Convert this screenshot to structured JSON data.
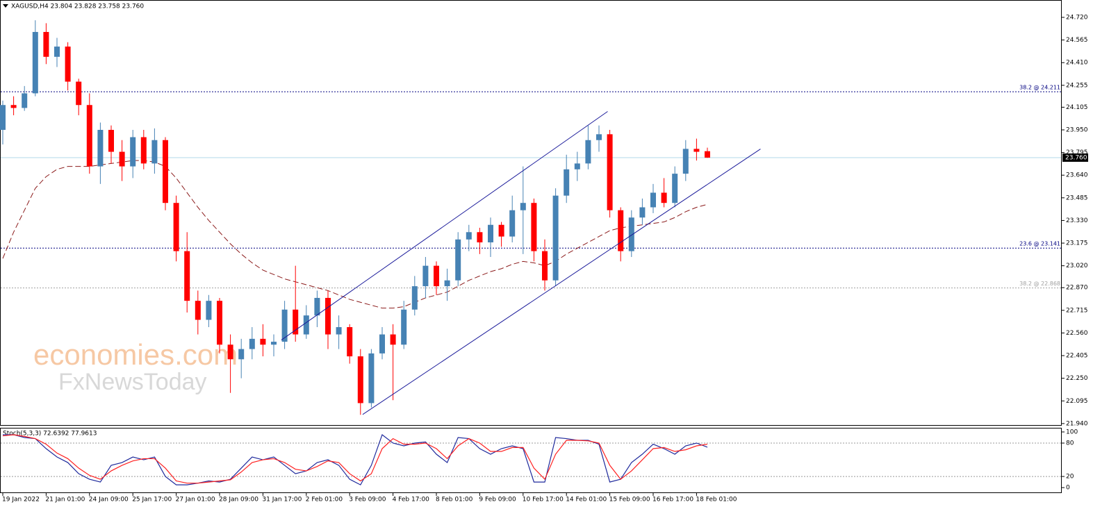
{
  "chart_data": [
    {
      "type": "candlestick",
      "title": "XAGUSD,H4  23.804 23.828 23.758 23.760",
      "bull_color": "#4682b4",
      "bear_color": "#ff0000",
      "ohlc": [
        [
          23.95,
          24.15,
          23.85,
          24.12
        ],
        [
          24.12,
          24.18,
          24.05,
          24.1
        ],
        [
          24.1,
          24.25,
          24.08,
          24.2
        ],
        [
          24.2,
          24.7,
          24.18,
          24.62
        ],
        [
          24.62,
          24.68,
          24.4,
          24.45
        ],
        [
          24.45,
          24.58,
          24.38,
          24.52
        ],
        [
          24.52,
          24.55,
          24.22,
          24.28
        ],
        [
          24.28,
          24.3,
          24.05,
          24.12
        ],
        [
          24.12,
          24.2,
          23.65,
          23.7
        ],
        [
          23.7,
          24.0,
          23.58,
          23.95
        ],
        [
          23.95,
          23.98,
          23.72,
          23.8
        ],
        [
          23.8,
          23.88,
          23.6,
          23.7
        ],
        [
          23.7,
          23.95,
          23.62,
          23.9
        ],
        [
          23.9,
          23.95,
          23.68,
          23.72
        ],
        [
          23.72,
          23.96,
          23.65,
          23.88
        ],
        [
          23.88,
          23.9,
          23.4,
          23.45
        ],
        [
          23.45,
          23.5,
          23.05,
          23.12
        ],
        [
          23.12,
          23.25,
          22.7,
          22.78
        ],
        [
          22.78,
          22.85,
          22.55,
          22.65
        ],
        [
          22.65,
          22.82,
          22.6,
          22.78
        ],
        [
          22.78,
          22.8,
          22.42,
          22.48
        ],
        [
          22.48,
          22.55,
          22.15,
          22.38
        ],
        [
          22.38,
          22.52,
          22.25,
          22.45
        ],
        [
          22.45,
          22.6,
          22.38,
          22.52
        ],
        [
          22.52,
          22.62,
          22.4,
          22.48
        ],
        [
          22.48,
          22.55,
          22.4,
          22.5
        ],
        [
          22.5,
          22.78,
          22.45,
          22.72
        ],
        [
          22.72,
          23.02,
          22.5,
          22.55
        ],
        [
          22.55,
          22.75,
          22.52,
          22.68
        ],
        [
          22.68,
          22.85,
          22.6,
          22.8
        ],
        [
          22.8,
          22.85,
          22.45,
          22.55
        ],
        [
          22.55,
          22.68,
          22.45,
          22.6
        ],
        [
          22.6,
          22.62,
          22.35,
          22.4
        ],
        [
          22.4,
          22.45,
          22.0,
          22.08
        ],
        [
          22.08,
          22.45,
          22.05,
          22.42
        ],
        [
          22.42,
          22.6,
          22.38,
          22.55
        ],
        [
          22.55,
          22.62,
          22.1,
          22.48
        ],
        [
          22.48,
          22.78,
          22.45,
          22.72
        ],
        [
          22.72,
          22.95,
          22.68,
          22.88
        ],
        [
          22.88,
          23.08,
          22.8,
          23.02
        ],
        [
          23.02,
          23.05,
          22.82,
          22.88
        ],
        [
          22.88,
          23.0,
          22.78,
          22.92
        ],
        [
          22.92,
          23.25,
          22.88,
          23.2
        ],
        [
          23.2,
          23.3,
          23.12,
          23.25
        ],
        [
          23.25,
          23.28,
          23.1,
          23.18
        ],
        [
          23.18,
          23.35,
          23.08,
          23.3
        ],
        [
          23.3,
          23.32,
          23.15,
          23.22
        ],
        [
          23.22,
          23.5,
          23.18,
          23.4
        ],
        [
          23.4,
          23.7,
          23.1,
          23.45
        ],
        [
          23.45,
          23.48,
          23.05,
          23.12
        ],
        [
          23.12,
          23.2,
          22.85,
          22.92
        ],
        [
          22.92,
          23.55,
          22.88,
          23.5
        ],
        [
          23.5,
          23.78,
          23.45,
          23.68
        ],
        [
          23.68,
          23.8,
          23.6,
          23.72
        ],
        [
          23.72,
          23.98,
          23.68,
          23.88
        ],
        [
          23.88,
          23.98,
          23.8,
          23.92
        ],
        [
          23.92,
          23.95,
          23.35,
          23.4
        ],
        [
          23.4,
          23.42,
          23.05,
          23.12
        ],
        [
          23.12,
          23.4,
          23.08,
          23.35
        ],
        [
          23.35,
          23.48,
          23.3,
          23.42
        ],
        [
          23.42,
          23.58,
          23.38,
          23.52
        ],
        [
          23.52,
          23.62,
          23.42,
          23.45
        ],
        [
          23.45,
          23.7,
          23.42,
          23.65
        ],
        [
          23.65,
          23.88,
          23.6,
          23.82
        ],
        [
          23.82,
          23.89,
          23.74,
          23.8
        ],
        [
          23.804,
          23.828,
          23.758,
          23.76
        ]
      ],
      "ma": {
        "color": "#8b1a1a",
        "values": [
          23.07,
          23.25,
          23.4,
          23.55,
          23.63,
          23.68,
          23.7,
          23.7,
          23.7,
          23.71,
          23.72,
          23.73,
          23.74,
          23.74,
          23.73,
          23.7,
          23.62,
          23.52,
          23.42,
          23.33,
          23.25,
          23.17,
          23.1,
          23.04,
          22.99,
          22.96,
          22.93,
          22.91,
          22.89,
          22.87,
          22.85,
          22.82,
          22.79,
          22.77,
          22.75,
          22.73,
          22.73,
          22.74,
          22.77,
          22.8,
          22.82,
          22.84,
          22.88,
          22.92,
          22.95,
          22.98,
          23.0,
          23.03,
          23.05,
          23.04,
          23.02,
          23.05,
          23.1,
          23.14,
          23.18,
          23.22,
          23.26,
          23.28,
          23.29,
          23.3,
          23.31,
          23.32,
          23.35,
          23.39,
          23.42,
          23.44
        ]
      },
      "ylim": [
        21.93,
        24.834
      ],
      "yticks": [
        {
          "value": 24.72,
          "label": "24.720"
        },
        24.565,
        {
          "value": 24.41,
          "label": "24.410"
        },
        24.255,
        24.105,
        {
          "value": 23.95,
          "label": "23.950"
        },
        23.795,
        {
          "value": 23.64,
          "label": "23.640"
        },
        23.485,
        {
          "value": 23.33,
          "label": "23.330"
        },
        23.175,
        {
          "value": 23.02,
          "label": "23.020"
        },
        {
          "value": 22.87,
          "label": "22.870"
        },
        22.715,
        {
          "value": 22.56,
          "label": "22.560"
        },
        22.405,
        {
          "value": 22.25,
          "label": "22.250"
        },
        22.095,
        {
          "value": 21.94,
          "label": "21.940"
        }
      ],
      "current_price": {
        "value": 23.76,
        "label": "23.760",
        "color": "#b0d8e8"
      },
      "levels": [
        {
          "value": 24.211,
          "label": "38.2 @ 24.211",
          "color": "#000080"
        },
        {
          "value": 23.141,
          "label": "23.6 @ 23.141",
          "color": "#000080"
        },
        {
          "value": 22.868,
          "label": "38.2 @ 22.868",
          "color": "#a0a0a0"
        }
      ],
      "trendlines": [
        {
          "x": [
            25.7,
            55.8
          ],
          "y": [
            22.512,
            24.076
          ],
          "color": "#1a1a9a"
        },
        {
          "x": [
            33.2,
            69.9
          ],
          "y": [
            22.002,
            23.819
          ],
          "color": "#1a1a9a"
        }
      ],
      "watermark": [
        "economies.com",
        "FxNewsToday"
      ]
    },
    {
      "type": "line",
      "title": "Stoch(5,3,3) 72.6392 77.9613",
      "series": [
        {
          "name": "Main",
          "color": "#1f2a9c",
          "values": [
            95,
            95,
            90,
            88,
            70,
            55,
            45,
            25,
            15,
            10,
            40,
            45,
            55,
            50,
            55,
            20,
            5,
            5,
            8,
            12,
            10,
            15,
            35,
            55,
            50,
            55,
            40,
            25,
            30,
            45,
            50,
            40,
            15,
            5,
            40,
            95,
            80,
            75,
            80,
            82,
            60,
            45,
            90,
            88,
            70,
            60,
            70,
            75,
            70,
            10,
            10,
            90,
            88,
            85,
            85,
            78,
            10,
            15,
            45,
            60,
            78,
            70,
            60,
            75,
            80,
            72.6392
          ]
        },
        {
          "name": "Signal",
          "color": "#ff2020",
          "values": [
            93,
            95,
            92,
            88,
            78,
            62,
            52,
            35,
            22,
            15,
            30,
            40,
            48,
            52,
            52,
            35,
            12,
            8,
            8,
            10,
            12,
            14,
            28,
            45,
            50,
            52,
            45,
            33,
            30,
            38,
            48,
            45,
            25,
            12,
            25,
            70,
            88,
            78,
            78,
            80,
            70,
            52,
            75,
            88,
            80,
            65,
            65,
            72,
            72,
            35,
            15,
            60,
            85,
            85,
            84,
            80,
            40,
            15,
            30,
            50,
            70,
            72,
            65,
            68,
            75,
            77.9613
          ]
        }
      ],
      "ylim": [
        -8.6,
        106.2
      ],
      "yticks": [
        0,
        20,
        80,
        100
      ],
      "levels": [
        80,
        20
      ],
      "xticks": [
        {
          "value": 0,
          "label": "19 Jan 2022"
        },
        {
          "value": 4,
          "label": "21 Jan 01:00"
        },
        {
          "value": 8,
          "label": "24 Jan 09:00"
        },
        {
          "value": 12,
          "label": "25 Jan 17:00"
        },
        {
          "value": 16,
          "label": "27 Jan 01:00"
        },
        {
          "value": 20,
          "label": "28 Jan 09:00"
        },
        {
          "value": 24,
          "label": "31 Jan 17:00"
        },
        {
          "value": 28,
          "label": "2 Feb 01:00"
        },
        {
          "value": 32,
          "label": "3 Feb 09:00"
        },
        {
          "value": 36,
          "label": "4 Feb 17:00"
        },
        {
          "value": 40,
          "label": "8 Feb 01:00"
        },
        {
          "value": 44,
          "label": "9 Feb 09:00"
        },
        {
          "value": 48,
          "label": "10 Feb 17:00"
        },
        {
          "value": 52,
          "label": "14 Feb 01:00"
        },
        {
          "value": 56,
          "label": "15 Feb 09:00"
        },
        {
          "value": 60,
          "label": "16 Feb 17:00"
        },
        {
          "value": 64,
          "label": "18 Feb 01:00"
        }
      ]
    }
  ]
}
